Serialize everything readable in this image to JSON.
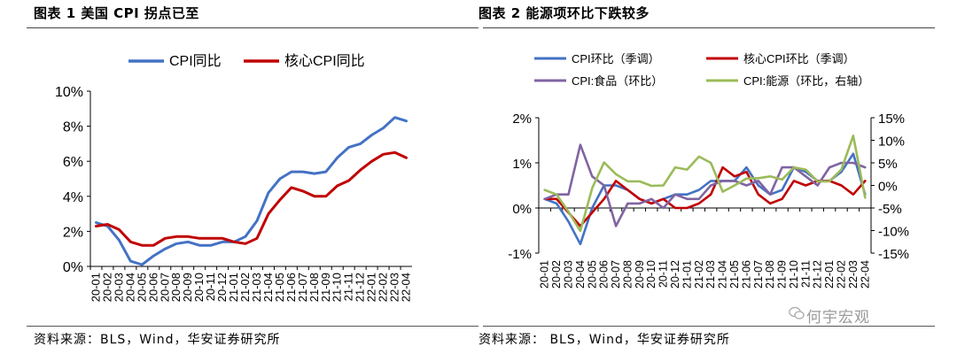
{
  "left_title": "图表 1  美国 CPI 拐点已至",
  "right_title": "图表 2  能源项环比下跌较多",
  "left_source": "资料来源：BLS，Wind，华安证券研究所",
  "right_source": "资料来源： BLS，Wind，华安证券研究所",
  "watermark": "何宇宏观",
  "colors": {
    "blue": "#4472C4",
    "red": "#C00000",
    "purple": "#8064A2",
    "green": "#9BBB59"
  },
  "chart_data": [
    {
      "type": "line",
      "x": [
        "20-01",
        "20-02",
        "20-03",
        "20-04",
        "20-05",
        "20-06",
        "20-07",
        "20-08",
        "20-09",
        "20-10",
        "20-11",
        "20-12",
        "21-01",
        "21-02",
        "21-03",
        "21-04",
        "21-05",
        "21-06",
        "21-07",
        "21-08",
        "21-09",
        "21-10",
        "21-11",
        "21-12",
        "22-01",
        "22-02",
        "22-03",
        "22-04"
      ],
      "ylim": [
        0,
        10
      ],
      "yticks": [
        "0%",
        "2%",
        "4%",
        "6%",
        "8%",
        "10%"
      ],
      "legend_position": "top",
      "series": [
        {
          "name": "CPI同比",
          "color": "#4472C4",
          "values": [
            2.5,
            2.3,
            1.5,
            0.3,
            0.1,
            0.6,
            1.0,
            1.3,
            1.4,
            1.2,
            1.2,
            1.4,
            1.4,
            1.7,
            2.6,
            4.2,
            5.0,
            5.4,
            5.4,
            5.3,
            5.4,
            6.2,
            6.8,
            7.0,
            7.5,
            7.9,
            8.5,
            8.3
          ]
        },
        {
          "name": "核心CPI同比",
          "color": "#C00000",
          "values": [
            2.3,
            2.4,
            2.1,
            1.4,
            1.2,
            1.2,
            1.6,
            1.7,
            1.7,
            1.6,
            1.6,
            1.6,
            1.4,
            1.3,
            1.6,
            3.0,
            3.8,
            4.5,
            4.3,
            4.0,
            4.0,
            4.6,
            4.9,
            5.5,
            6.0,
            6.4,
            6.5,
            6.2
          ]
        }
      ]
    },
    {
      "type": "line",
      "x": [
        "20-01",
        "20-02",
        "20-03",
        "20-04",
        "20-05",
        "20-06",
        "20-07",
        "20-08",
        "20-09",
        "20-10",
        "20-11",
        "20-12",
        "21-01",
        "21-02",
        "21-03",
        "21-04",
        "21-05",
        "21-06",
        "21-07",
        "21-08",
        "21-09",
        "21-10",
        "21-11",
        "21-12",
        "22-01",
        "22-02",
        "22-03",
        "22-04"
      ],
      "ylim": [
        -1,
        2
      ],
      "yticks": [
        "-1%",
        "0%",
        "1%",
        "2%"
      ],
      "y2lim": [
        -15,
        15
      ],
      "y2ticks": [
        "-15%",
        "-10%",
        "-5%",
        "0%",
        "5%",
        "10%",
        "15%"
      ],
      "legend_position": "top",
      "series": [
        {
          "name": "CPI环比（季调）",
          "color": "#4472C4",
          "axis": "left",
          "values": [
            0.2,
            0.1,
            -0.3,
            -0.8,
            0.0,
            0.5,
            0.5,
            0.4,
            0.2,
            0.1,
            0.2,
            0.3,
            0.3,
            0.4,
            0.6,
            0.6,
            0.6,
            0.9,
            0.5,
            0.3,
            0.4,
            0.9,
            0.8,
            0.6,
            0.6,
            0.8,
            1.2,
            0.3
          ]
        },
        {
          "name": "核心CPI环比（季调）",
          "color": "#C00000",
          "axis": "left",
          "values": [
            0.2,
            0.2,
            -0.1,
            -0.4,
            -0.1,
            0.2,
            0.6,
            0.4,
            0.2,
            0.1,
            0.2,
            0.0,
            0.0,
            0.1,
            0.3,
            0.9,
            0.7,
            0.8,
            0.3,
            0.1,
            0.2,
            0.6,
            0.5,
            0.6,
            0.6,
            0.5,
            0.3,
            0.6
          ]
        },
        {
          "name": "CPI:食品（环比）",
          "color": "#8064A2",
          "axis": "left",
          "values": [
            0.2,
            0.3,
            0.3,
            1.4,
            0.7,
            0.5,
            -0.4,
            0.1,
            0.1,
            0.2,
            0.0,
            0.3,
            0.2,
            0.2,
            0.5,
            0.6,
            0.6,
            0.5,
            0.6,
            0.3,
            0.9,
            0.9,
            0.7,
            0.5,
            0.9,
            1.0,
            1.0,
            0.9
          ]
        },
        {
          "name": "CPI:能源（环比，右轴）",
          "color": "#9BBB59",
          "axis": "right",
          "values": [
            -1.0,
            -2.0,
            -5.8,
            -10.1,
            -0.6,
            5.1,
            2.5,
            0.9,
            0.9,
            -0.1,
            0.0,
            4.0,
            3.5,
            6.4,
            5.0,
            -1.4,
            0.0,
            1.5,
            1.6,
            2.0,
            1.3,
            4.0,
            3.5,
            0.9,
            0.9,
            3.5,
            11.0,
            -2.7
          ]
        }
      ]
    }
  ]
}
